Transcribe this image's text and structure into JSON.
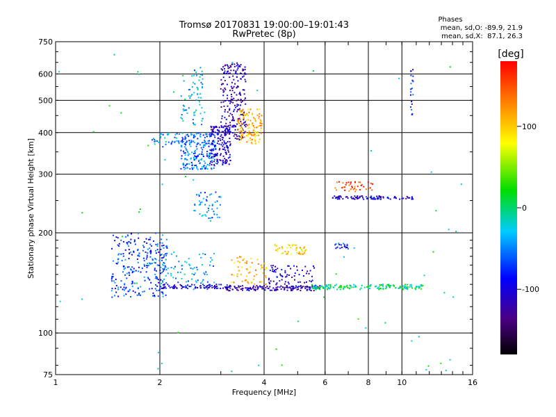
{
  "header": {
    "title": "Tromsø 20170831 19:00:00–19:01:43",
    "subtitle": "RwPretec (8p)"
  },
  "phase_stats": {
    "heading": "Phases",
    "line_o": "mean, sd,O: -89.9, 21.9",
    "line_x": "mean, sd,X:  87.1, 26.3"
  },
  "colorbar": {
    "label": "[deg]",
    "ticks": [
      {
        "value": 100,
        "label": "100"
      },
      {
        "value": 0,
        "label": "0"
      },
      {
        "value": -100,
        "label": "-100"
      }
    ],
    "range": [
      -180,
      180
    ]
  },
  "chart_data": {
    "type": "scatter",
    "xlabel": "Frequency [MHz]",
    "ylabel": "Stationary phase Virtual Height [km]",
    "xscale": "log",
    "yscale": "log",
    "xlim": [
      1,
      16
    ],
    "ylim": [
      75,
      750
    ],
    "grid": true,
    "x_ticks": [
      1,
      2,
      4,
      6,
      8,
      10,
      16
    ],
    "x_tick_labels": [
      "1",
      "2",
      "4",
      "6",
      "8",
      "10",
      "16"
    ],
    "y_ticks": [
      75,
      100,
      200,
      300,
      400,
      500,
      600,
      750
    ],
    "y_tick_labels": [
      "75",
      "100",
      "200",
      "300",
      "400",
      "500",
      "600",
      "750"
    ],
    "color_variable": "phase [deg]",
    "clusters": [
      {
        "x_range": [
          1.45,
          2.1
        ],
        "y_range": [
          128,
          200
        ],
        "phase": -70,
        "count": 260
      },
      {
        "x_range": [
          2.0,
          2.9
        ],
        "y_range": [
          135,
          175
        ],
        "phase": -40,
        "count": 80
      },
      {
        "x_range": [
          1.9,
          2.3
        ],
        "y_range": [
          360,
          400
        ],
        "phase": -40,
        "count": 40
      },
      {
        "x_range": [
          2.3,
          2.9
        ],
        "y_range": [
          310,
          400
        ],
        "phase": -55,
        "count": 220
      },
      {
        "x_range": [
          2.3,
          2.7
        ],
        "y_range": [
          420,
          630
        ],
        "phase": -30,
        "count": 70
      },
      {
        "x_range": [
          2.8,
          3.2
        ],
        "y_range": [
          320,
          420
        ],
        "phase": -110,
        "count": 160
      },
      {
        "x_range": [
          3.0,
          3.55
        ],
        "y_range": [
          380,
          650
        ],
        "phase": -115,
        "count": 220
      },
      {
        "x_range": [
          3.35,
          3.95
        ],
        "y_range": [
          370,
          470
        ],
        "phase": 110,
        "count": 130
      },
      {
        "x_range": [
          2.5,
          3.0
        ],
        "y_range": [
          220,
          265
        ],
        "phase": -50,
        "count": 50
      },
      {
        "x_range": [
          2.0,
          3.2
        ],
        "y_range": [
          136,
          140
        ],
        "phase": -100,
        "count": 90
      },
      {
        "x_range": [
          3.1,
          5.8
        ],
        "y_range": [
          134,
          139
        ],
        "phase": -120,
        "count": 140
      },
      {
        "x_range": [
          3.2,
          4.1
        ],
        "y_range": [
          140,
          170
        ],
        "phase": 110,
        "count": 60
      },
      {
        "x_range": [
          4.3,
          5.3
        ],
        "y_range": [
          172,
          185
        ],
        "phase": 95,
        "count": 50
      },
      {
        "x_range": [
          4.1,
          5.6
        ],
        "y_range": [
          135,
          160
        ],
        "phase": -110,
        "count": 80
      },
      {
        "x_range": [
          5.5,
          11.5
        ],
        "y_range": [
          135,
          140
        ],
        "phase": 0,
        "count": 160
      },
      {
        "x_range": [
          6.3,
          10.8
        ],
        "y_range": [
          252,
          258
        ],
        "phase": -100,
        "count": 90
      },
      {
        "x_range": [
          6.3,
          8.3
        ],
        "y_range": [
          265,
          285
        ],
        "phase": 150,
        "count": 40
      },
      {
        "x_range": [
          6.4,
          7.0
        ],
        "y_range": [
          178,
          186
        ],
        "phase": -80,
        "count": 20
      },
      {
        "x_range": [
          10.6,
          10.8
        ],
        "y_range": [
          450,
          620
        ],
        "phase": -80,
        "count": 20
      },
      {
        "x_range": [
          1.0,
          16.0
        ],
        "y_range": [
          75,
          700
        ],
        "phase": 0,
        "count": 60
      }
    ]
  }
}
